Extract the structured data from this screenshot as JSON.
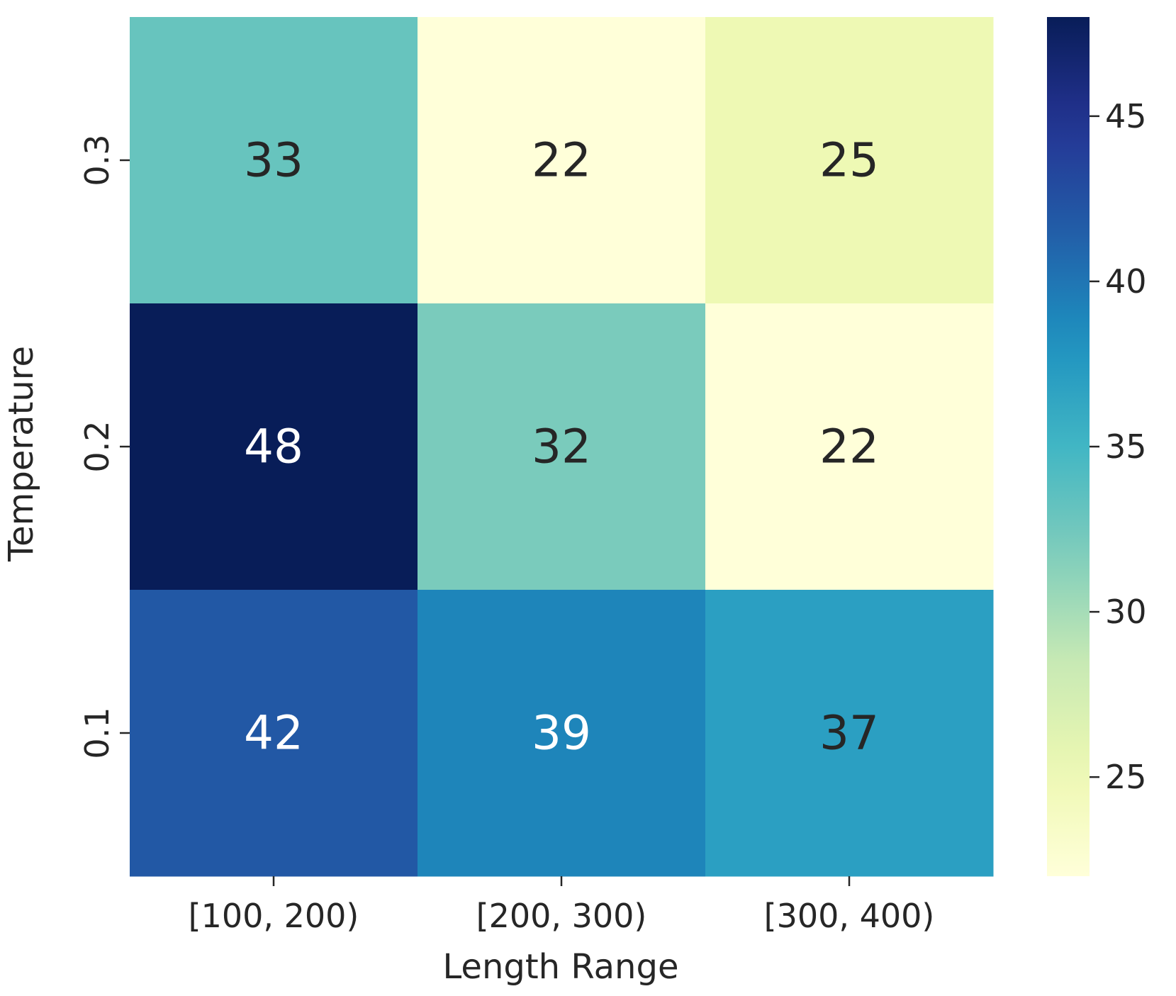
{
  "chart_data": {
    "type": "heatmap",
    "title": "",
    "xlabel": "Length Range",
    "ylabel": "Temperature",
    "x_categories": [
      "[100, 200)",
      "[200, 300)",
      "[300, 400)"
    ],
    "y_categories": [
      "0.3",
      "0.2",
      "0.1"
    ],
    "values": [
      [
        33,
        22,
        25
      ],
      [
        48,
        32,
        22
      ],
      [
        42,
        39,
        37
      ]
    ],
    "colormap": "YlGnBu",
    "colorbar": {
      "range": [
        22,
        48
      ],
      "ticks": [
        25,
        30,
        35,
        40,
        45
      ],
      "tick_labels": [
        "25",
        "30",
        "35",
        "40",
        "45"
      ]
    },
    "annotation_colors": {
      "dark_text": "#262626",
      "light_text": "#ffffff"
    },
    "grid": false,
    "legend": "colorbar-right"
  }
}
